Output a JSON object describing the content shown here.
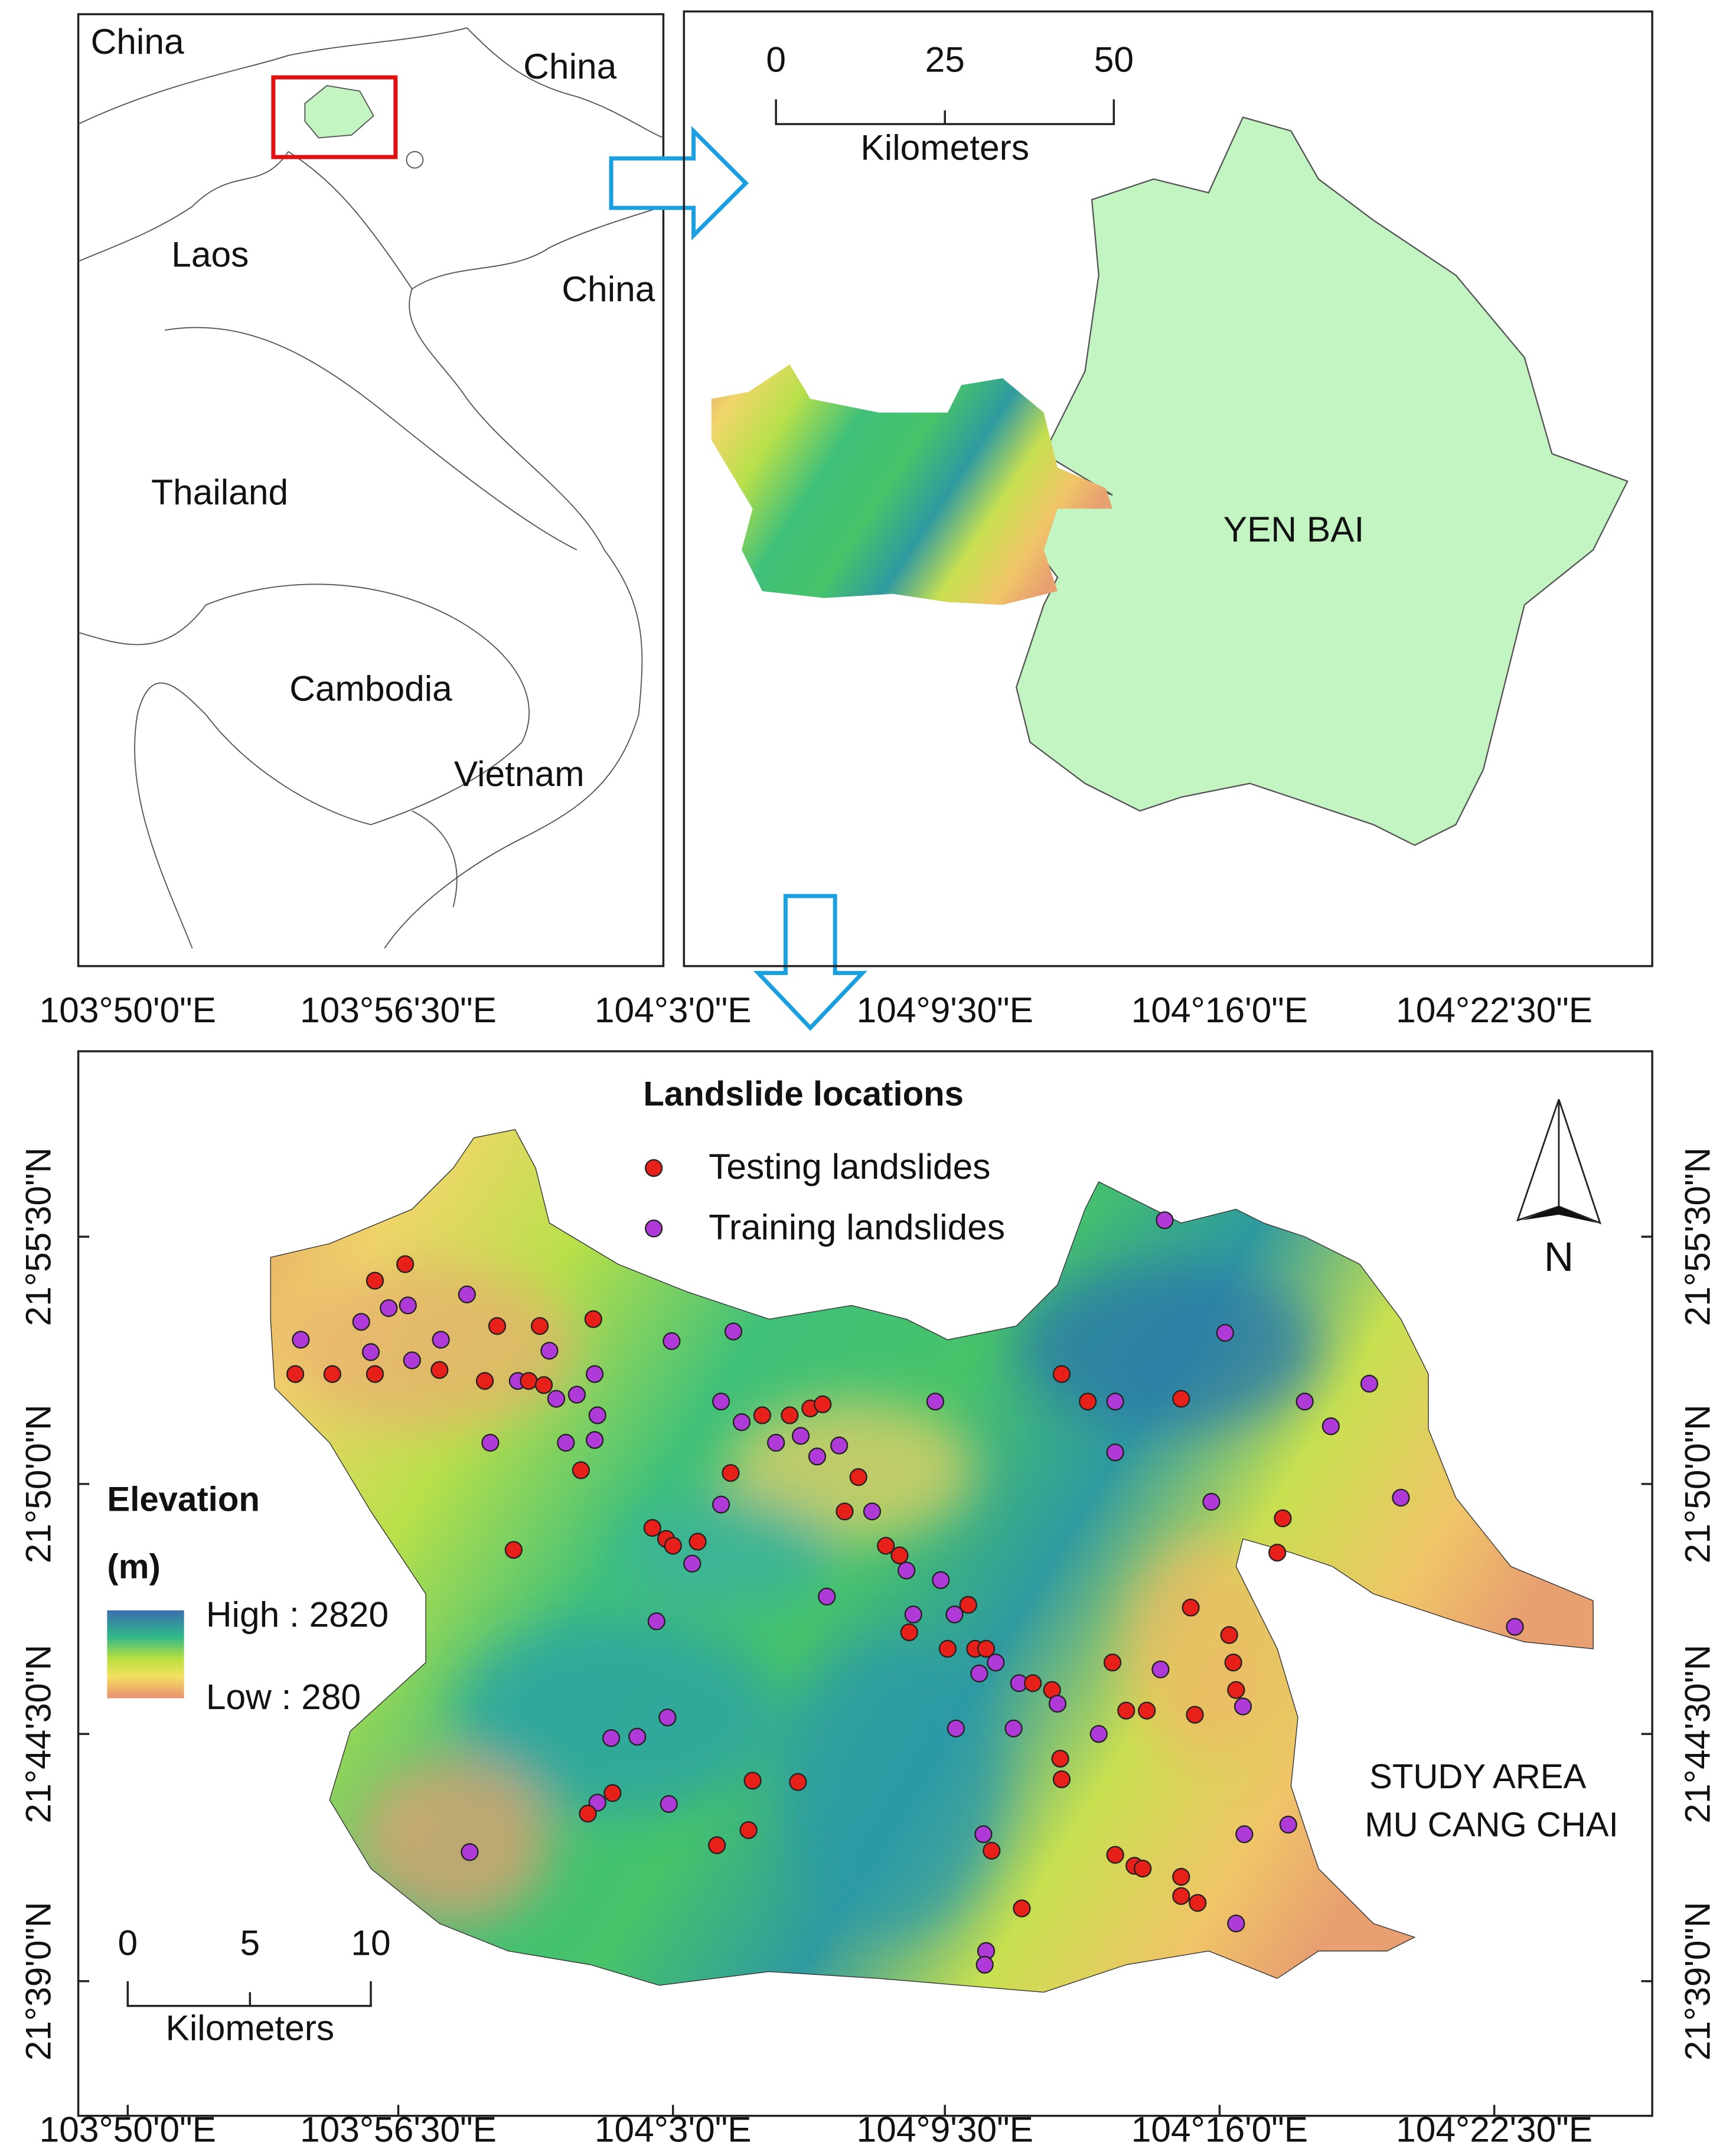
{
  "inset_map": {
    "countries": [
      "China",
      "China",
      "Laos",
      "China",
      "Thailand",
      "Cambodia",
      "Vietnam"
    ]
  },
  "province_map": {
    "scale_bar": {
      "ticks": [
        "0",
        "25",
        "50"
      ],
      "unit": "Kilometers"
    },
    "province_label": "YEN BAI"
  },
  "study_area_map": {
    "legend_title": "Landslide locations",
    "legend": [
      "Testing landslides",
      "Training landslides"
    ],
    "elevation": {
      "title": "Elevation",
      "unit": "(m)",
      "high": "High : 2820",
      "low": "Low : 280"
    },
    "area_label": [
      "STUDY AREA",
      "MU CANG CHAI"
    ],
    "north": "N",
    "scale_bar": {
      "ticks": [
        "0",
        "5",
        "10"
      ],
      "unit": "Kilometers"
    },
    "longitude_labels": [
      "103°50'0\"E",
      "103°56'30\"E",
      "104°3'0\"E",
      "104°9'30\"E",
      "104°16'0\"E",
      "104°22'30\"E"
    ],
    "latitude_labels": [
      "21°55'30\"N",
      "21°50'0\"N",
      "21°44'30\"N",
      "21°39'0\"N"
    ]
  }
}
